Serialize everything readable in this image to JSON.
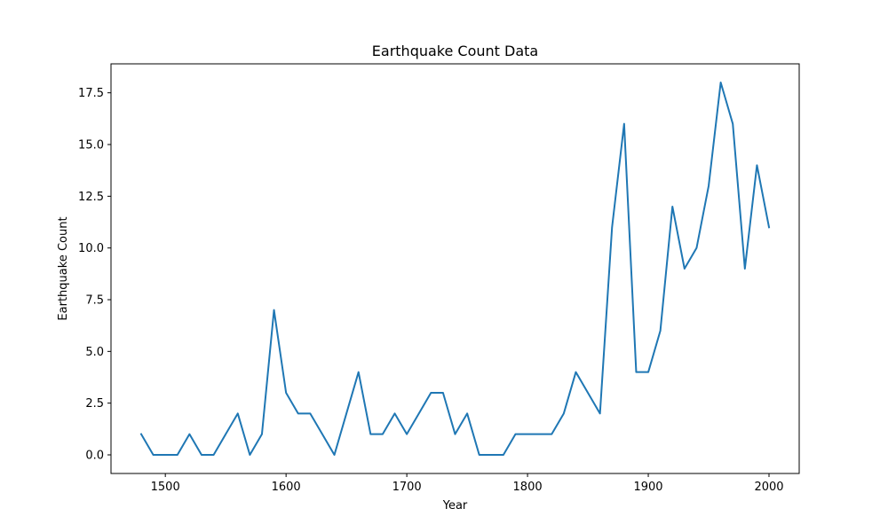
{
  "chart_data": {
    "type": "line",
    "title": "Earthquake Count Data",
    "xlabel": "Year",
    "ylabel": "Earthquake Count",
    "xlim": [
      1455,
      2025
    ],
    "ylim": [
      -0.9,
      18.9
    ],
    "xticks": [
      1500,
      1600,
      1700,
      1800,
      1900,
      2000
    ],
    "xtick_labels": [
      "1500",
      "1600",
      "1700",
      "1800",
      "1900",
      "2000"
    ],
    "yticks": [
      0,
      2.5,
      5,
      7.5,
      10,
      12.5,
      15,
      17.5
    ],
    "ytick_labels": [
      "0.0",
      "2.5",
      "5.0",
      "7.5",
      "10.0",
      "12.5",
      "15.0",
      "17.5"
    ],
    "grid": false,
    "series_color": "#1f77b4",
    "x": [
      1480,
      1490,
      1500,
      1510,
      1520,
      1530,
      1540,
      1550,
      1560,
      1570,
      1580,
      1590,
      1600,
      1610,
      1620,
      1630,
      1640,
      1650,
      1660,
      1670,
      1680,
      1690,
      1700,
      1710,
      1720,
      1730,
      1740,
      1750,
      1760,
      1770,
      1780,
      1790,
      1800,
      1810,
      1820,
      1830,
      1840,
      1850,
      1860,
      1870,
      1880,
      1890,
      1900,
      1910,
      1920,
      1930,
      1940,
      1950,
      1960,
      1970,
      1980,
      1990,
      2000
    ],
    "series": [
      {
        "values": [
          1,
          0,
          0,
          0,
          1,
          0,
          0,
          1,
          2,
          0,
          1,
          7,
          3,
          2,
          2,
          1,
          0,
          2,
          4,
          1,
          1,
          2,
          1,
          2,
          3,
          3,
          1,
          2,
          0,
          0,
          0,
          1,
          1,
          1,
          1,
          2,
          4,
          3,
          2,
          11,
          16,
          4,
          4,
          6,
          12,
          9,
          10,
          13,
          18,
          16,
          9,
          14,
          11
        ]
      }
    ]
  }
}
